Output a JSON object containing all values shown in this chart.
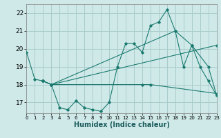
{
  "xlabel": "Humidex (Indice chaleur)",
  "xlim": [
    0,
    23
  ],
  "ylim": [
    16.4,
    22.5
  ],
  "yticks": [
    17,
    18,
    19,
    20,
    21,
    22
  ],
  "xticks": [
    0,
    1,
    2,
    3,
    4,
    5,
    6,
    7,
    8,
    9,
    10,
    11,
    12,
    13,
    14,
    15,
    16,
    17,
    18,
    19,
    20,
    21,
    22,
    23
  ],
  "bg_color": "#cfe9e9",
  "grid_color": "#aacccc",
  "line_color": "#1a7a6e",
  "line1_x": [
    0,
    1,
    2,
    3,
    4,
    5,
    6,
    7,
    8,
    9,
    10,
    11,
    12,
    13,
    14,
    15,
    16,
    17,
    18,
    19,
    20,
    21,
    22,
    23
  ],
  "line1_y": [
    19.8,
    18.3,
    18.2,
    18.0,
    16.7,
    16.6,
    17.1,
    16.7,
    16.6,
    16.5,
    17.0,
    19.0,
    20.3,
    20.3,
    19.8,
    21.3,
    21.5,
    22.2,
    21.0,
    19.0,
    20.2,
    19.0,
    18.2,
    17.4
  ],
  "line2_x": [
    2,
    3,
    18,
    20,
    22,
    23
  ],
  "line2_y": [
    18.2,
    18.0,
    21.0,
    20.2,
    19.0,
    17.4
  ],
  "line3_x": [
    2,
    3,
    23
  ],
  "line3_y": [
    18.2,
    18.0,
    20.2
  ],
  "line4_x": [
    2,
    3,
    14,
    15,
    23
  ],
  "line4_y": [
    18.2,
    18.0,
    18.0,
    18.0,
    17.5
  ]
}
